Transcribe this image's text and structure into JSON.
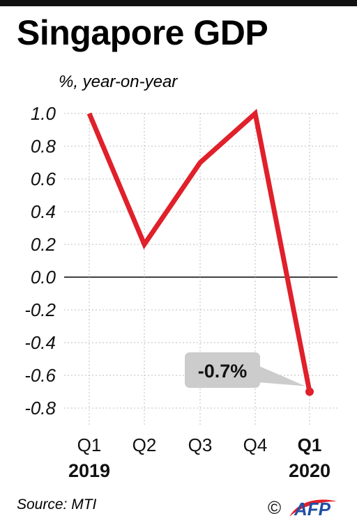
{
  "header": {
    "title": "Singapore GDP",
    "subtitle": "%, year-on-year"
  },
  "footer": {
    "source": "Source: MTI",
    "copyright_symbol": "©",
    "brand": "AFP"
  },
  "colors": {
    "line": "#e0202a",
    "grid": "#bdbdbd",
    "callout_bg": "#cccccc",
    "afp_blue": "#1f4fa5"
  },
  "chart_data": {
    "type": "line",
    "title": "Singapore GDP",
    "ylabel": "%, year-on-year",
    "categories": [
      "Q1",
      "Q2",
      "Q3",
      "Q4",
      "Q1"
    ],
    "category_years": [
      "2019",
      "",
      "",
      "",
      "2020"
    ],
    "bold_categories": [
      false,
      false,
      false,
      false,
      true
    ],
    "series": [
      {
        "values": [
          1.0,
          0.2,
          0.7,
          1.0,
          -0.7
        ]
      }
    ],
    "ylim": [
      -0.8,
      1.0
    ],
    "yticks": [
      "1.0",
      "0.8",
      "0.6",
      "0.4",
      "0.2",
      "0.0",
      "-0.2",
      "-0.4",
      "-0.6",
      "-0.8"
    ],
    "ytick_values": [
      1.0,
      0.8,
      0.6,
      0.4,
      0.2,
      0.0,
      -0.2,
      -0.4,
      -0.6,
      -0.8
    ],
    "grid": true,
    "annotation": {
      "text": "-0.7%",
      "point_index": 4
    }
  }
}
